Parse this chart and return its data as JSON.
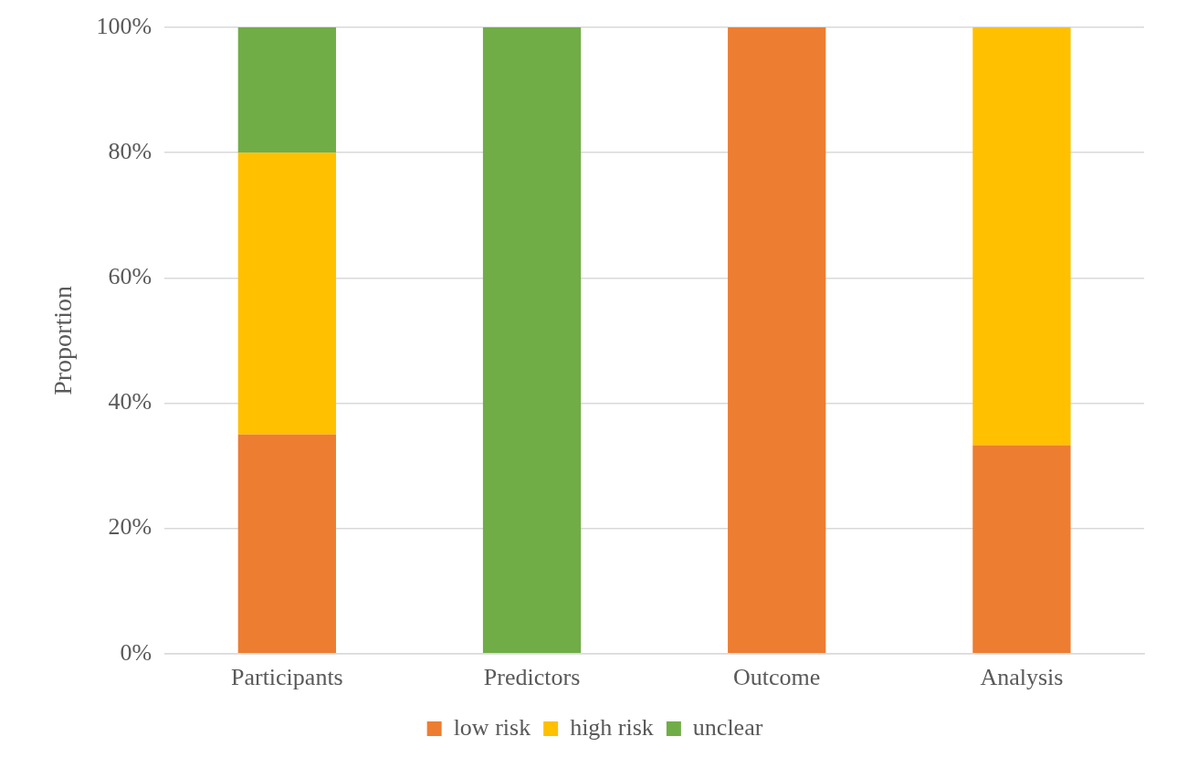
{
  "chart_data": {
    "type": "bar",
    "stacked": true,
    "ylabel": "Proportion",
    "categories": [
      "Participants",
      "Predictors",
      "Outcome",
      "Analysis"
    ],
    "series": [
      {
        "name": "low risk",
        "color": "#ed7d31",
        "values": [
          35,
          0,
          100,
          33.3
        ]
      },
      {
        "name": "high risk",
        "color": "#ffc000",
        "values": [
          45,
          0,
          0,
          66.7
        ]
      },
      {
        "name": "unclear",
        "color": "#70ad47",
        "values": [
          20,
          100,
          0,
          0
        ]
      }
    ],
    "ylim": [
      0,
      100
    ],
    "yticks": [
      {
        "value": 0,
        "label": "0%"
      },
      {
        "value": 20,
        "label": "20%"
      },
      {
        "value": 40,
        "label": "40%"
      },
      {
        "value": 60,
        "label": "60%"
      },
      {
        "value": 80,
        "label": "80%"
      },
      {
        "value": 100,
        "label": "100%"
      }
    ],
    "grid": "y",
    "legend": "bottom"
  }
}
